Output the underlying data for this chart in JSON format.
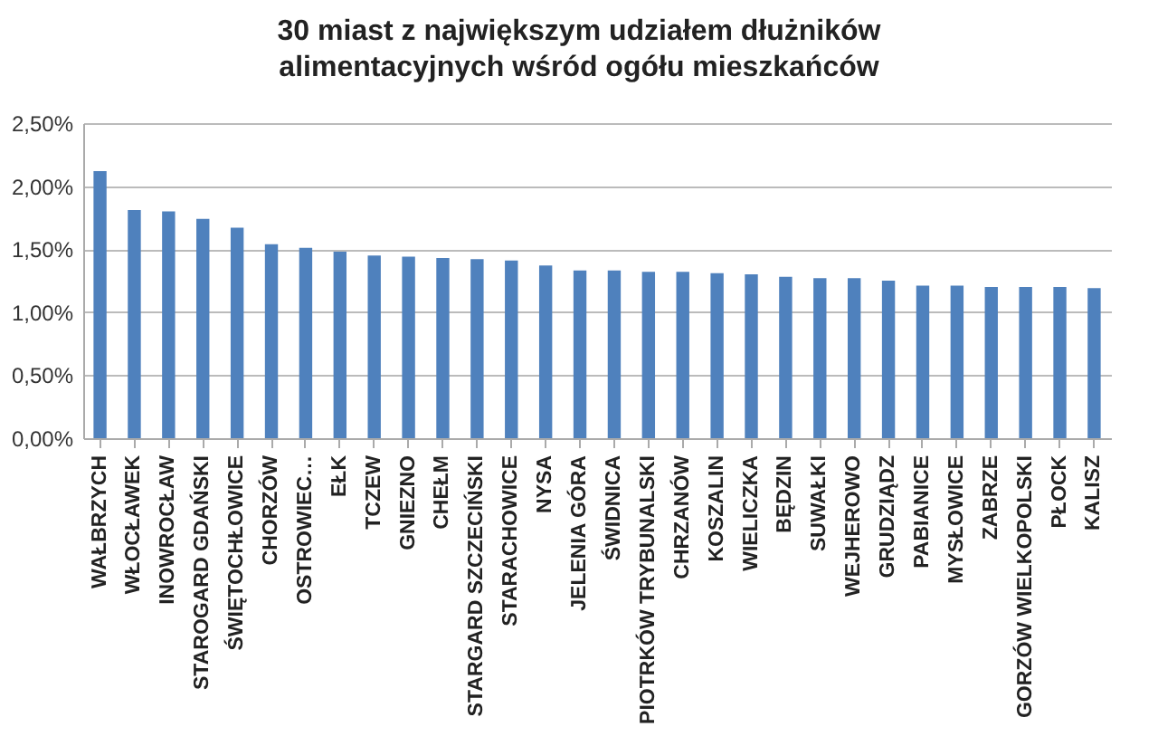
{
  "chart_data": {
    "type": "bar",
    "title": "30 miast z największym udziałem dłużników alimentacyjnych wśród ogółu mieszkańców",
    "categories": [
      "WAŁBRZYCH",
      "WŁOCŁAWEK",
      "INOWROCŁAW",
      "STAROGARD GDAŃSKI",
      "ŚWIĘTOCHŁOWICE",
      "CHORZÓW",
      "OSTROWIEC…",
      "EŁK",
      "TCZEW",
      "GNIEZNO",
      "CHEŁM",
      "STARGARD SZCZECIŃSKI",
      "STARACHOWICE",
      "NYSA",
      "JELENIA GÓRA",
      "ŚWIDNICA",
      "PIOTRKÓW TRYBUNALSKI",
      "CHRZANÓW",
      "KOSZALIN",
      "WIELICZKA",
      "BĘDZIN",
      "SUWAŁKI",
      "WEJHEROWO",
      "GRUDZIĄDZ",
      "PABIANICE",
      "MYSŁOWICE",
      "ZABRZE",
      "GORZÓW WIELKOPOLSKI",
      "PŁOCK",
      "KALISZ"
    ],
    "values": [
      2.12,
      1.81,
      1.8,
      1.74,
      1.67,
      1.54,
      1.51,
      1.48,
      1.45,
      1.44,
      1.43,
      1.42,
      1.41,
      1.37,
      1.33,
      1.33,
      1.32,
      1.32,
      1.31,
      1.3,
      1.28,
      1.27,
      1.27,
      1.25,
      1.21,
      1.21,
      1.2,
      1.2,
      1.2,
      1.19
    ],
    "color": "#4f81bd",
    "ylim": [
      0,
      2.5
    ],
    "yticks": [
      {
        "value": 0,
        "label": "0,00%"
      },
      {
        "value": 0.5,
        "label": "0,50%"
      },
      {
        "value": 1,
        "label": "1,00%"
      },
      {
        "value": 1.5,
        "label": "1,50%"
      },
      {
        "value": 2,
        "label": "2,00%"
      },
      {
        "value": 2.5,
        "label": "2,50%"
      }
    ],
    "grid": "y"
  }
}
